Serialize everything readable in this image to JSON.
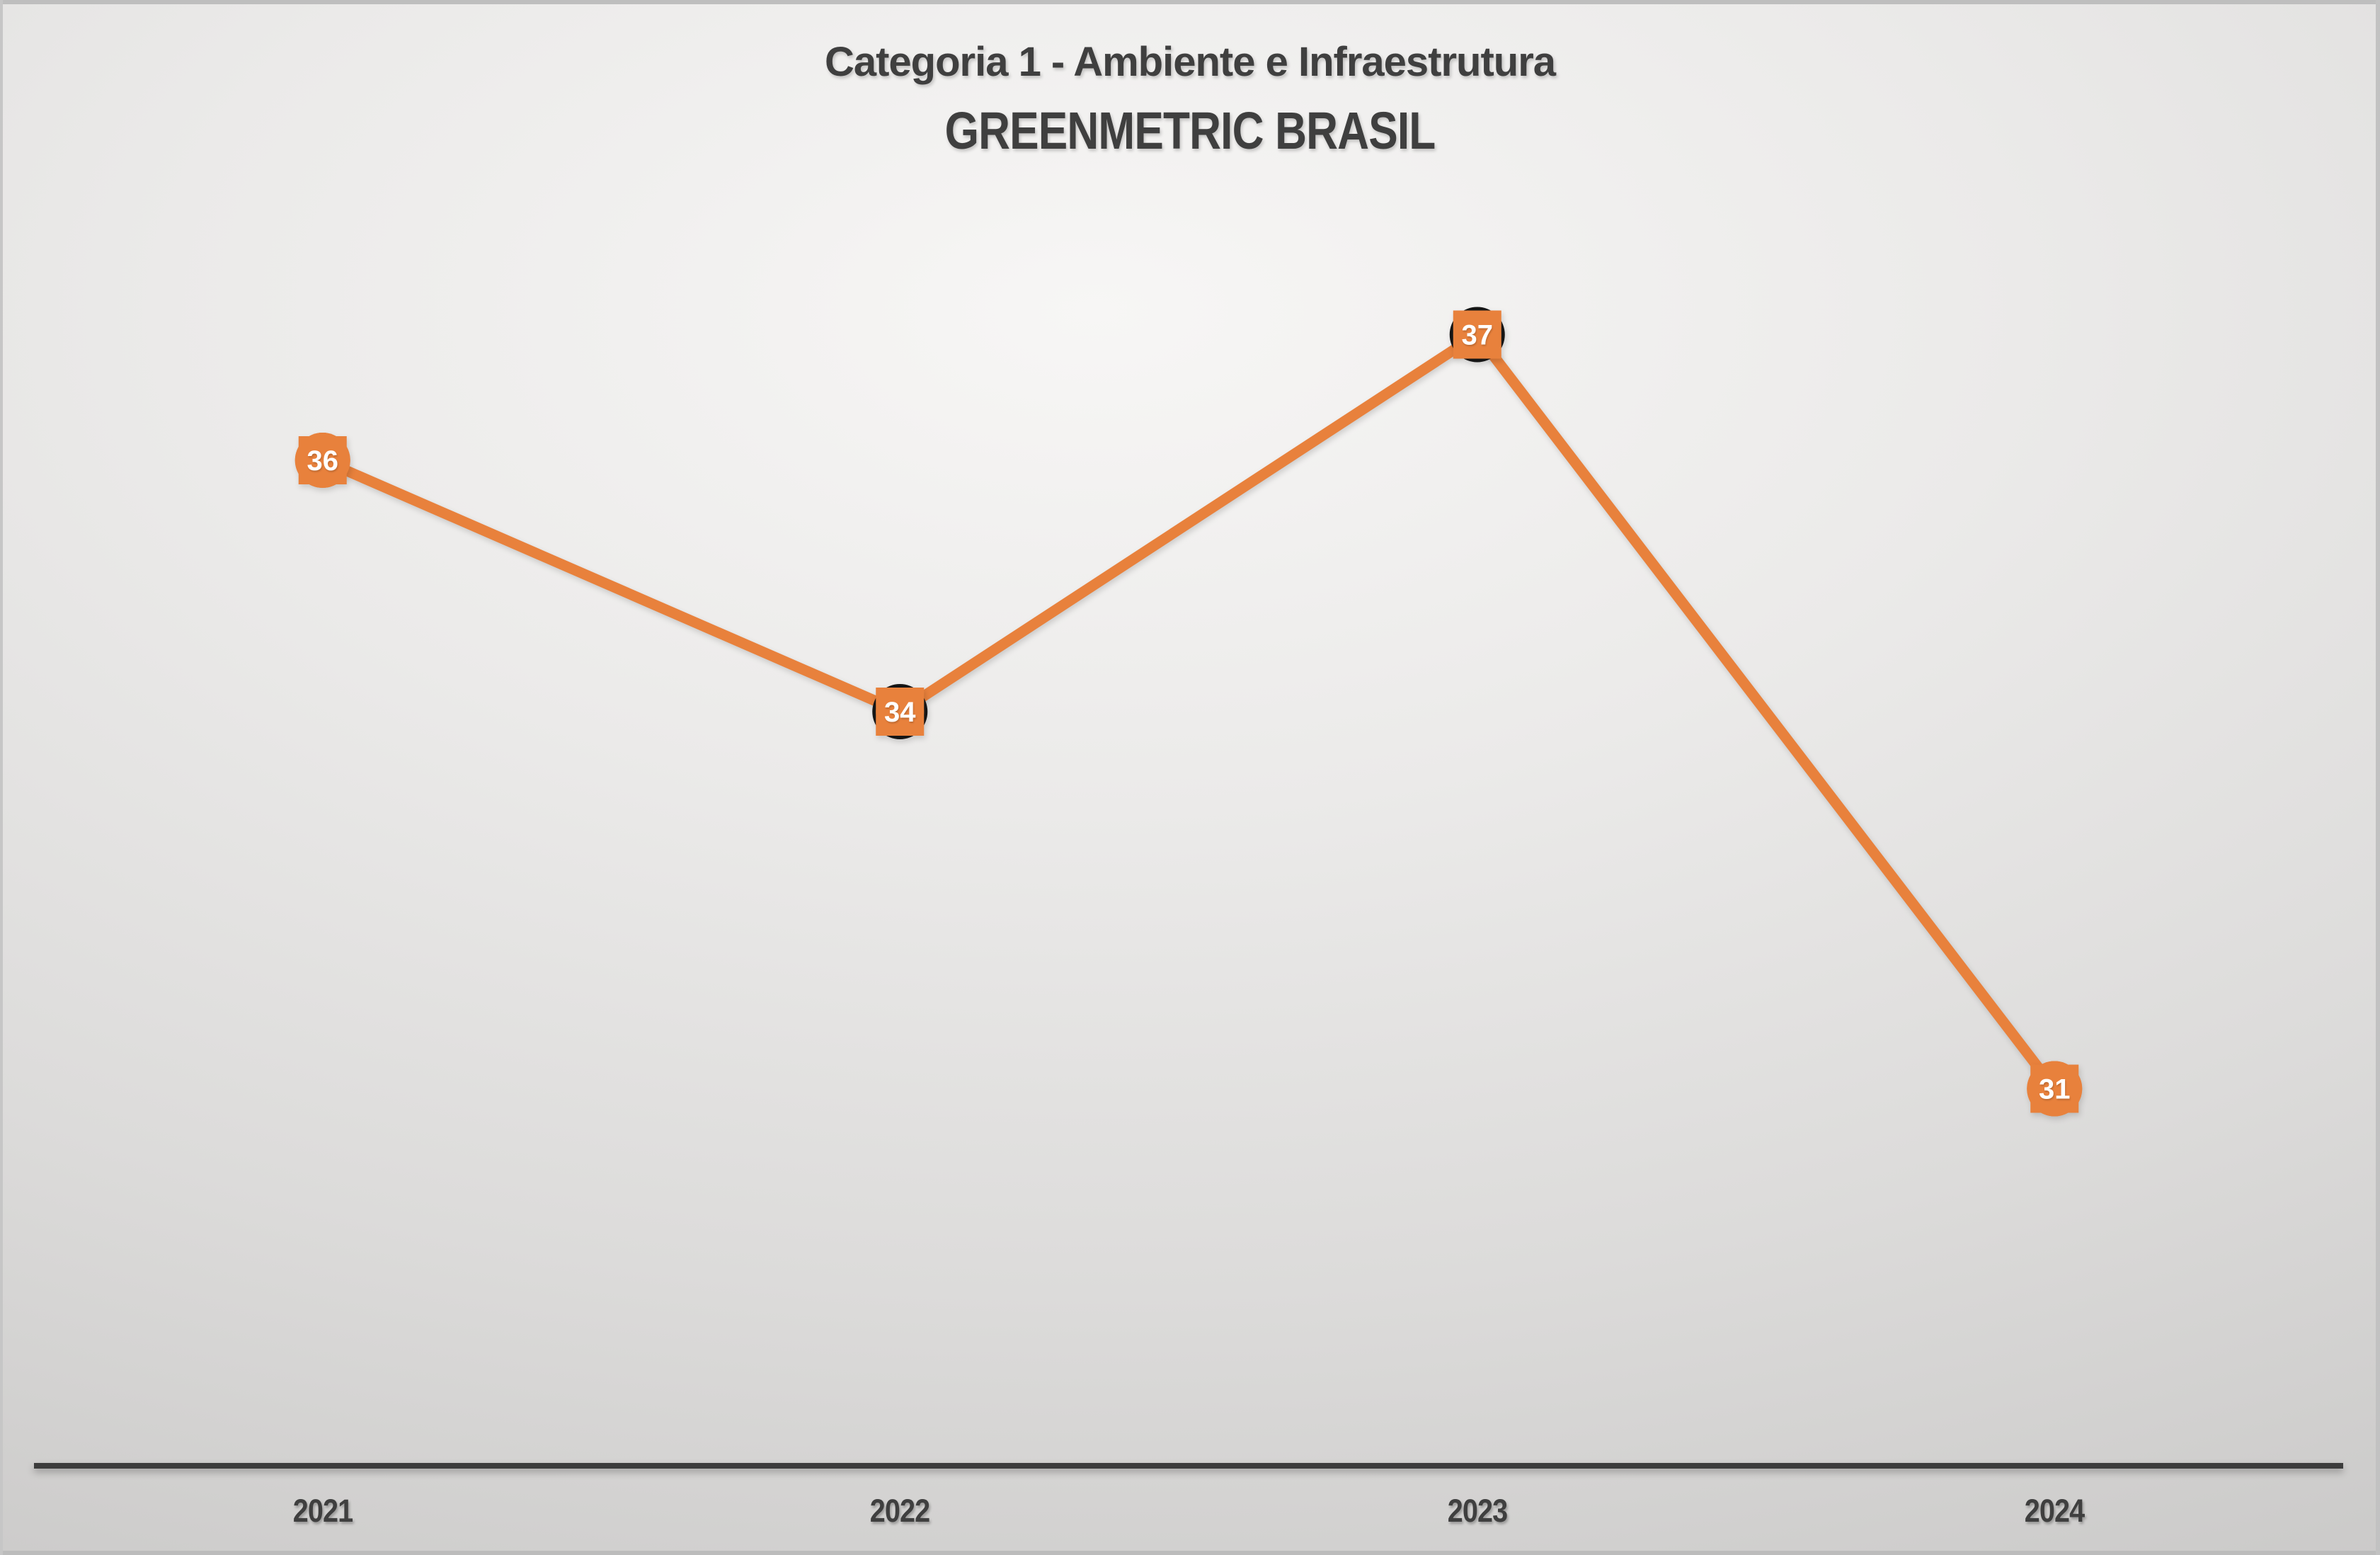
{
  "chart_data": {
    "type": "line",
    "title": "Categoria 1 - Ambiente e Infraestrutura",
    "subtitle": "GREENMETRIC BRASIL",
    "categories": [
      "2021",
      "2022",
      "2023",
      "2024"
    ],
    "values": [
      36,
      34,
      37,
      31
    ],
    "data_labels": [
      "36",
      "34",
      "37",
      "31"
    ],
    "marker_styles": [
      "orange-badge",
      "orange-badge-black-ring",
      "orange-badge-dark-circle",
      "orange-badge"
    ],
    "xlabel": "",
    "ylabel": "",
    "ylim": [
      28,
      40
    ],
    "grid": false,
    "legend": "none",
    "y_axis_shown": false,
    "x_axis_shown": true,
    "colors": {
      "line": "#E8813C",
      "marker_fill": "#E8813C",
      "marker_dark_fill": "#484848",
      "marker_ring": "#151515",
      "data_label_text": "#FFFFFF",
      "axis_line": "#3C3C3C",
      "tick_text": "#3F3F3F",
      "title_text": "#3F3F3F"
    }
  }
}
